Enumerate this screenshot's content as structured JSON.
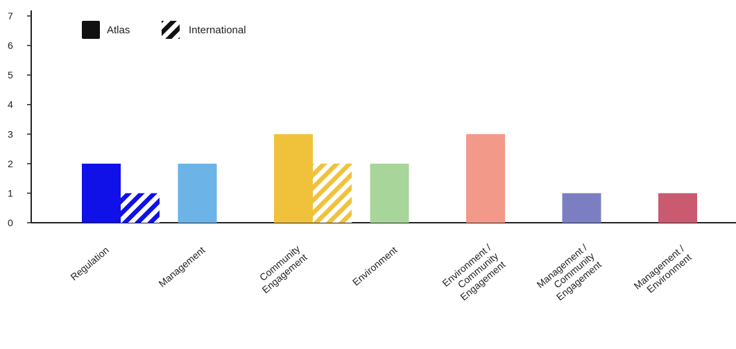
{
  "chart_data": {
    "type": "bar",
    "categories": [
      [
        "Regulation"
      ],
      [
        "Management"
      ],
      [
        "Community",
        "Engagement"
      ],
      [
        "Environment"
      ],
      [
        "Environment /",
        "Community",
        "Engagement"
      ],
      [
        "Management /",
        "Community",
        "Engagement"
      ],
      [
        "Management /",
        "Environment"
      ]
    ],
    "series": [
      {
        "name": "Atlas",
        "pattern": "solid",
        "values": [
          2,
          2,
          3,
          2,
          3,
          1,
          1
        ]
      },
      {
        "name": "International",
        "pattern": "hatched",
        "values": [
          1,
          0,
          2,
          0,
          0,
          0,
          0
        ]
      }
    ],
    "category_colors": [
      "#1010e8",
      "#6cb4e8",
      "#f0c23c",
      "#a8d59a",
      "#f2998a",
      "#7b7fc2",
      "#c95a70"
    ],
    "legend_color": "#111111",
    "yticks": [
      0,
      1,
      2,
      3,
      4,
      5,
      6,
      7
    ],
    "ylim": [
      0,
      7
    ],
    "xlabel": "",
    "ylabel": "",
    "title": "",
    "legend_position": "top-left",
    "grid": false
  }
}
